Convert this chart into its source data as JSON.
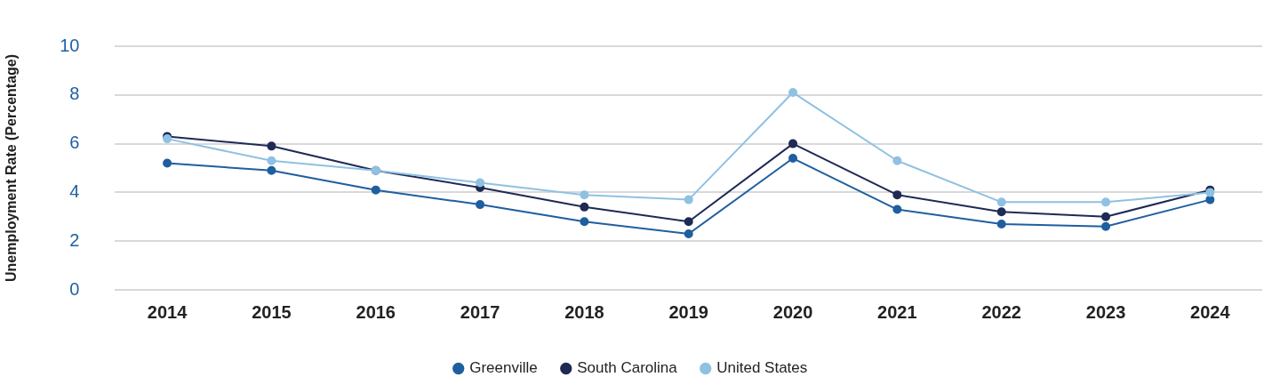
{
  "chart_data": {
    "type": "line",
    "ylabel": "Unemployment Rate (Percentage)",
    "categories": [
      "2014",
      "2015",
      "2016",
      "2017",
      "2018",
      "2019",
      "2020",
      "2021",
      "2022",
      "2023",
      "2024"
    ],
    "series": [
      {
        "name": "Greenville",
        "color": "#1f5fa0",
        "values": [
          5.2,
          4.9,
          4.1,
          3.5,
          2.8,
          2.3,
          5.4,
          3.3,
          2.7,
          2.6,
          3.7
        ]
      },
      {
        "name": "South Carolina",
        "color": "#1f2a55",
        "values": [
          6.3,
          5.9,
          4.9,
          4.2,
          3.4,
          2.8,
          6.0,
          3.9,
          3.2,
          3.0,
          4.1
        ]
      },
      {
        "name": "United States",
        "color": "#8fc1e3",
        "values": [
          6.2,
          5.3,
          4.9,
          4.4,
          3.9,
          3.7,
          8.1,
          5.3,
          3.6,
          3.6,
          4.0
        ]
      }
    ],
    "ylim": [
      0,
      10
    ],
    "yticks": [
      0,
      2,
      4,
      6,
      8,
      10
    ],
    "grid": "y",
    "legend": "bottom",
    "marker": "circle",
    "line_style": "solid"
  }
}
